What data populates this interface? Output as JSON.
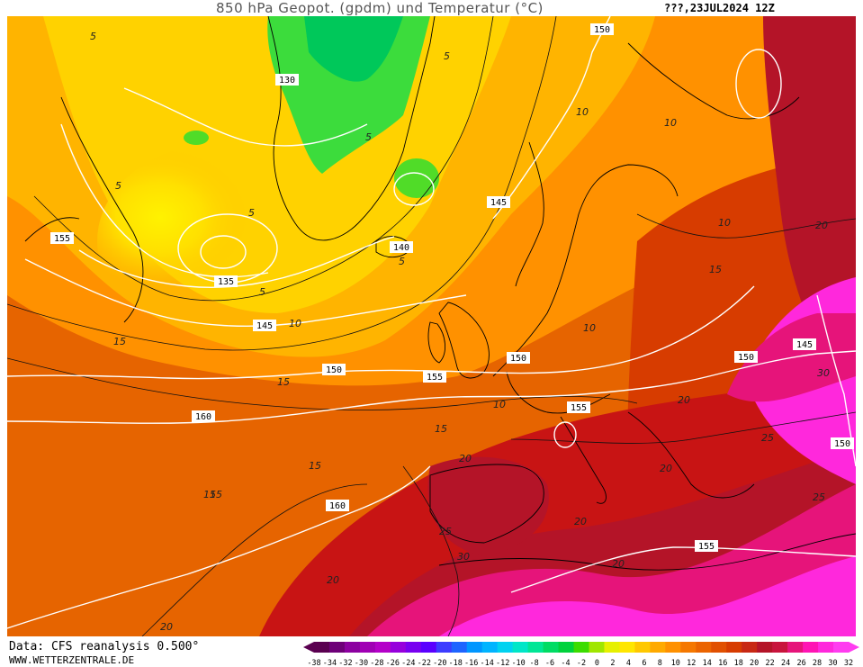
{
  "header": {
    "title": "850 hPa Geopot. (gpdm) und Temperatur (°C)",
    "date": "???,23JUL2024 12Z"
  },
  "footer": {
    "data_source": "Data: CFS reanalysis 0.500°",
    "site": "WWW.WETTERZENTRALE.DE"
  },
  "legend": {
    "ticks": [
      "-38",
      "-34",
      "-32",
      "-30",
      "-28",
      "-26",
      "-24",
      "-22",
      "-20",
      "-18",
      "-16",
      "-14",
      "-12",
      "-10",
      "-8",
      "-6",
      "-4",
      "-2",
      "0",
      "2",
      "4",
      "6",
      "8",
      "10",
      "12",
      "14",
      "16",
      "18",
      "20",
      "22",
      "24",
      "26",
      "28",
      "30",
      "32"
    ],
    "colors": [
      "#5a0050",
      "#6e0078",
      "#8c00a0",
      "#a000b4",
      "#b400c8",
      "#9600dc",
      "#7800f0",
      "#5a00ff",
      "#3c3cff",
      "#1e64ff",
      "#0096ff",
      "#00b4ff",
      "#00d2f0",
      "#00e6c8",
      "#00e696",
      "#00dc64",
      "#00d23c",
      "#3cdc00",
      "#a0e600",
      "#e6f000",
      "#ffe600",
      "#ffc800",
      "#ffaa00",
      "#ff9100",
      "#f57800",
      "#eb6400",
      "#e15000",
      "#d73c00",
      "#c82814",
      "#b41428",
      "#c8143c",
      "#e6147a",
      "#ff14b4",
      "#ff28dc",
      "#ff3cf0"
    ]
  },
  "map": {
    "geopotential_labels": [
      "150",
      "130",
      "145",
      "155",
      "140",
      "135",
      "145",
      "150",
      "155",
      "150",
      "160",
      "155",
      "150",
      "145",
      "150",
      "160",
      "155"
    ],
    "temperature_labels": [
      "5",
      "5",
      "5",
      "5",
      "10",
      "10",
      "5",
      "5",
      "5",
      "10",
      "15",
      "15",
      "15",
      "10",
      "10",
      "10",
      "20",
      "15",
      "15",
      "20",
      "30",
      "20",
      "20",
      "25",
      "25",
      "20",
      "15",
      "15",
      "20",
      "30",
      "25",
      "20",
      "20"
    ]
  }
}
